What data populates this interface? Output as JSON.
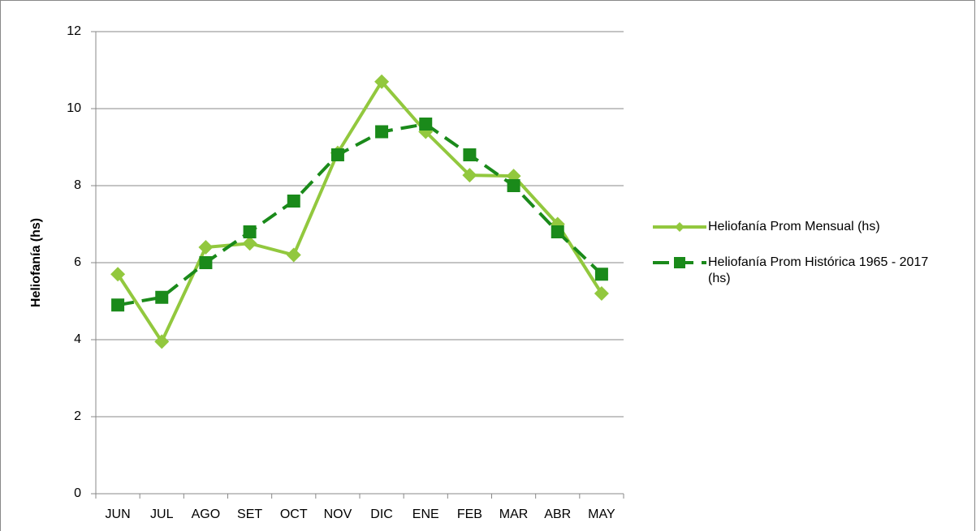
{
  "chart_data": {
    "type": "line",
    "y_label": "Heliofanía (hs)",
    "categories": [
      "JUN",
      "JUL",
      "AGO",
      "SET",
      "OCT",
      "NOV",
      "DIC",
      "ENE",
      "FEB",
      "MAR",
      "ABR",
      "MAY"
    ],
    "series": [
      {
        "name": "Heliofanía Prom Mensual (hs)",
        "color": "#92c83e",
        "marker": "diamond",
        "dashed": false,
        "values": [
          5.7,
          3.95,
          6.4,
          6.5,
          6.2,
          8.85,
          10.7,
          9.4,
          8.27,
          8.25,
          7.0,
          5.2
        ]
      },
      {
        "name": "Heliofanía Prom Histórica 1965 - 2017 (hs)",
        "color": "#1a8a1a",
        "marker": "square",
        "dashed": true,
        "values": [
          4.9,
          5.1,
          6.0,
          6.8,
          7.6,
          8.8,
          9.4,
          9.6,
          8.8,
          8.0,
          6.8,
          5.7
        ]
      }
    ],
    "ylim": [
      0,
      12
    ],
    "yticks": [
      0,
      2,
      4,
      6,
      8,
      10,
      12
    ],
    "grid": true,
    "legend": "right"
  }
}
